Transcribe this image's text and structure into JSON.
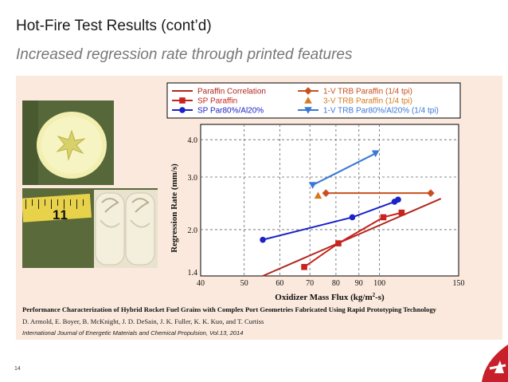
{
  "slide": {
    "title": "Hot-Fire Test Results (cont’d)",
    "subtitle": "Increased regression rate through printed features",
    "page_number": "14"
  },
  "reference": {
    "title": "Performance Characterization of Hybrid Rocket Fuel Grains with Complex Port Geometries Fabricated Using Rapid Prototyping Technology",
    "authors": "D. Armold, E. Boyer, B. McKnight, J. D. DeSain, J. K. Fuller, K. K. Kuo, and T. Curtiss",
    "journal": "International Journal of Energetic Materials and Chemical Propulsion, Vol.13, 2014"
  },
  "photos": {
    "ruler_numbers": [
      "1",
      "1"
    ]
  },
  "colors": {
    "correlation": "#b0281e",
    "sp_paraffin": "#c8241e",
    "sp_par80": "#1a22c8",
    "trb_paraffin_1v": "#c8501e",
    "trb_paraffin_3v": "#d8781e",
    "trb_par80": "#3a78d8",
    "panel_bg": "#fbe9dd",
    "logo": "#c8202a"
  },
  "chart_data": {
    "type": "scatter",
    "xlabel": "Oxidizer Mass Flux (kg/m",
    "xlabel_sup": "2",
    "xlabel_tail": "-s)",
    "ylabel": "Regression Rate (mm/s)",
    "xscale": "log",
    "yscale": "log",
    "xlim": [
      40,
      150
    ],
    "ylim": [
      1.4,
      4.5
    ],
    "xticks": [
      40,
      50,
      60,
      70,
      80,
      90,
      100,
      150
    ],
    "xtick_labels": [
      "40",
      "50",
      "60",
      "70",
      "80",
      "90",
      "100",
      "150"
    ],
    "yticks": [
      1.4,
      2.0,
      3.0,
      4.0
    ],
    "ytick_labels": [
      "1.4",
      "2.0",
      "3.0",
      "4.0"
    ],
    "grid": true,
    "legend_position": "top",
    "series": [
      {
        "name": "Paraffin Correlation",
        "kind": "line",
        "color": "#b0281e",
        "x": [
          55,
          137
        ],
        "y": [
          1.4,
          2.54
        ]
      },
      {
        "name": "SP Paraffin",
        "kind": "line-marker",
        "marker": "square",
        "color": "#c8241e",
        "x": [
          68,
          81,
          102,
          112
        ],
        "y": [
          1.5,
          1.8,
          2.2,
          2.28
        ]
      },
      {
        "name": "SP Par80%/Al20%",
        "kind": "line-marker",
        "marker": "circle",
        "color": "#1a22c8",
        "x": [
          55,
          87,
          108,
          110
        ],
        "y": [
          1.85,
          2.2,
          2.48,
          2.52
        ]
      },
      {
        "name": "1-V TRB Paraffin (1/4 tpi)",
        "kind": "line-marker",
        "marker": "diamond",
        "color": "#c8501e",
        "x": [
          76,
          130
        ],
        "y": [
          2.65,
          2.65
        ]
      },
      {
        "name": "3-V TRB Paraffin (1/4 tpi)",
        "kind": "marker",
        "marker": "triangle-up",
        "color": "#d8781e",
        "x": [
          73
        ],
        "y": [
          2.6
        ]
      },
      {
        "name": "1-V TRB Par80%/Al20% (1/4 tpi)",
        "kind": "line-marker",
        "marker": "triangle-down",
        "color": "#3a78d8",
        "x": [
          71,
          98
        ],
        "y": [
          2.82,
          3.6
        ]
      }
    ]
  }
}
